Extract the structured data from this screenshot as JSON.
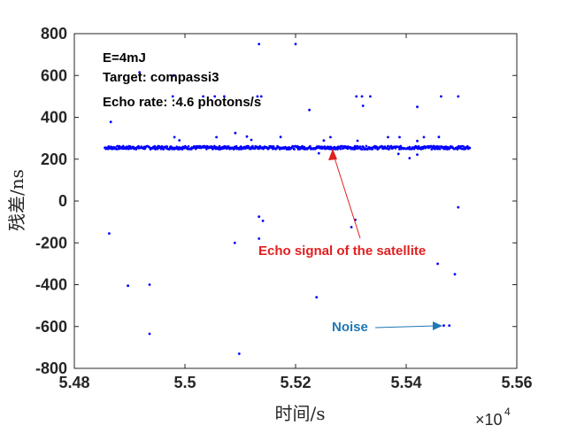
{
  "chart_data": {
    "type": "scatter",
    "title": "",
    "xlabel": "时间/s",
    "ylabel": "残差/ns",
    "xlim": [
      5.48,
      5.56
    ],
    "ylim": [
      -800,
      800
    ],
    "x_multiplier_label": "×10",
    "x_multiplier_exponent": "4",
    "xticks": [
      5.48,
      5.5,
      5.52,
      5.54,
      5.56
    ],
    "xtick_labels": [
      "5.48",
      "5.5",
      "5.52",
      "5.54",
      "5.56"
    ],
    "yticks": [
      -800,
      -600,
      -400,
      -200,
      0,
      200,
      400,
      600,
      800
    ],
    "ytick_labels": [
      "-800",
      "-600",
      "-400",
      "-200",
      "0",
      "200",
      "400",
      "600",
      "800"
    ],
    "grid": false,
    "marker_color": "#0000ff",
    "band": {
      "x_start": 5.4855,
      "x_end": 5.5515,
      "y_center": 255,
      "y_half_width": 8
    },
    "points": [
      [
        5.5134,
        750
      ],
      [
        5.52,
        750
      ],
      [
        5.4918,
        615
      ],
      [
        5.4979,
        600
      ],
      [
        5.4978,
        500
      ],
      [
        5.5033,
        500
      ],
      [
        5.5054,
        500
      ],
      [
        5.5071,
        500
      ],
      [
        5.5131,
        500
      ],
      [
        5.5138,
        500
      ],
      [
        5.531,
        500
      ],
      [
        5.532,
        500
      ],
      [
        5.5335,
        500
      ],
      [
        5.5463,
        500
      ],
      [
        5.5494,
        500
      ],
      [
        5.5322,
        455
      ],
      [
        5.542,
        450
      ],
      [
        5.5225,
        435
      ],
      [
        5.4866,
        378
      ],
      [
        5.4981,
        305
      ],
      [
        5.5057,
        305
      ],
      [
        5.5091,
        325
      ],
      [
        5.5112,
        308
      ],
      [
        5.5173,
        306
      ],
      [
        5.5263,
        305
      ],
      [
        5.5367,
        305
      ],
      [
        5.5388,
        305
      ],
      [
        5.5432,
        305
      ],
      [
        5.5459,
        306
      ],
      [
        5.499,
        290
      ],
      [
        5.512,
        292
      ],
      [
        5.5251,
        289
      ],
      [
        5.5312,
        288
      ],
      [
        5.542,
        287
      ],
      [
        5.5386,
        225
      ],
      [
        5.5406,
        205
      ],
      [
        5.542,
        222
      ],
      [
        5.5242,
        228
      ],
      [
        5.4863,
        -155
      ],
      [
        5.4897,
        -405
      ],
      [
        5.4936,
        -400
      ],
      [
        5.4936,
        -635
      ],
      [
        5.509,
        -200
      ],
      [
        5.5098,
        -730
      ],
      [
        5.5134,
        -75
      ],
      [
        5.5141,
        -95
      ],
      [
        5.5134,
        -180
      ],
      [
        5.5238,
        -460
      ],
      [
        5.5301,
        -125
      ],
      [
        5.5308,
        -90
      ],
      [
        5.5457,
        -300
      ],
      [
        5.5488,
        -350
      ],
      [
        5.5494,
        -30
      ],
      [
        5.5468,
        -595
      ],
      [
        5.5478,
        -595
      ]
    ]
  },
  "annotations": {
    "energy": "E=4mJ",
    "target": "Target: compassi3",
    "echo_rate": "Echo rate: :4.6 photons/s",
    "signal_label": "Echo signal of the satellite",
    "noise_label": "Noise",
    "signal_color": "#e02020",
    "noise_color": "#1f77b4"
  }
}
